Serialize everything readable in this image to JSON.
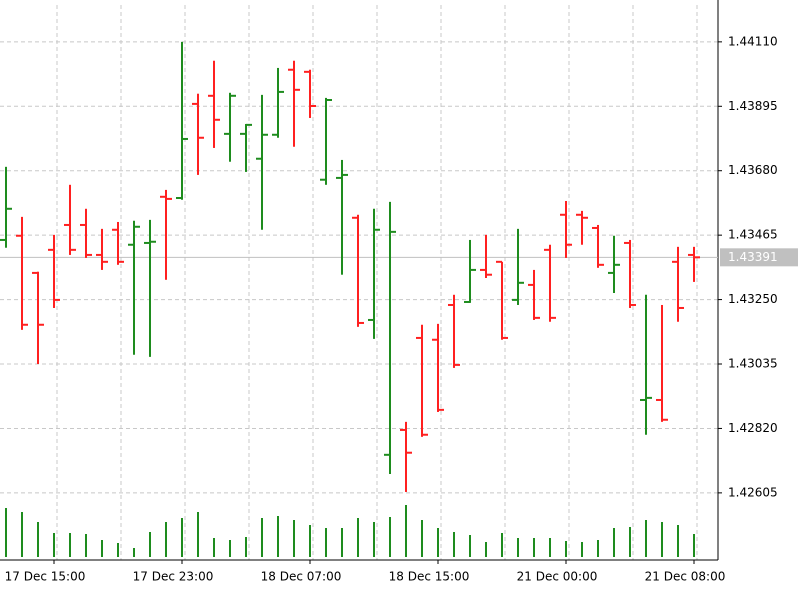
{
  "chart_data": {
    "type": "ohlc",
    "x": [
      null,
      null,
      null,
      "17 Dec 15:00",
      null,
      null,
      null,
      null,
      null,
      null,
      null,
      "17 Dec 23:00",
      null,
      null,
      null,
      null,
      null,
      null,
      null,
      "18 Dec 07:00",
      null,
      null,
      null,
      null,
      null,
      null,
      null,
      "18 Dec 15:00",
      null,
      null,
      null,
      null,
      null,
      null,
      null,
      "21 Dec 00:00",
      null,
      null,
      null,
      null,
      null,
      null,
      null,
      "21 Dec 08:00"
    ],
    "open": [
      1.43449,
      1.43463,
      1.43339,
      1.43416,
      1.43499,
      1.43499,
      1.43399,
      1.43483,
      1.43433,
      1.43439,
      1.43593,
      1.43589,
      1.43903,
      1.4393,
      1.43803,
      1.43803,
      1.4372,
      1.438,
      1.44017,
      1.4401,
      1.4365,
      1.43656,
      1.43523,
      1.43182,
      1.42732,
      1.42815,
      1.43122,
      1.43116,
      1.43232,
      1.43242,
      1.43349,
      1.43376,
      1.43249,
      1.43299,
      1.43416,
      1.43533,
      1.43533,
      1.43489,
      1.43339,
      1.43439,
      1.42915,
      1.42915,
      1.43376,
      1.43399
    ],
    "high": [
      1.43693,
      1.43526,
      1.43343,
      1.43466,
      1.43633,
      1.43553,
      1.43486,
      1.43509,
      1.43513,
      1.43516,
      1.43616,
      1.4411,
      1.43937,
      1.44047,
      1.4394,
      1.43836,
      1.43933,
      1.44023,
      1.44047,
      1.44017,
      1.43923,
      1.43716,
      1.43533,
      1.43553,
      1.43576,
      1.42842,
      1.43166,
      1.43169,
      1.43266,
      1.43449,
      1.43466,
      1.43376,
      1.43486,
      1.43349,
      1.43433,
      1.43579,
      1.43546,
      1.43499,
      1.43463,
      1.43449,
      1.43266,
      1.43232,
      1.43426,
      1.43426
    ],
    "low": [
      1.43423,
      1.43149,
      1.43035,
      1.43222,
      1.43399,
      1.43389,
      1.43349,
      1.43366,
      1.43066,
      1.43059,
      1.43316,
      1.43583,
      1.43666,
      1.43756,
      1.4371,
      1.43676,
      1.43483,
      1.4379,
      1.4376,
      1.43856,
      1.43633,
      1.43333,
      1.43159,
      1.43119,
      1.42668,
      1.42608,
      1.42792,
      1.42875,
      1.43022,
      1.43239,
      1.43322,
      1.43116,
      1.43232,
      1.43182,
      1.43176,
      1.43389,
      1.43433,
      1.43356,
      1.43272,
      1.43222,
      1.42799,
      1.42842,
      1.43176,
      1.43309
    ],
    "close": [
      1.43553,
      1.43166,
      1.43166,
      1.43249,
      1.43416,
      1.43399,
      1.43376,
      1.43376,
      1.43493,
      1.43443,
      1.43586,
      1.43786,
      1.4379,
      1.4385,
      1.4393,
      1.43833,
      1.438,
      1.43943,
      1.4395,
      1.43896,
      1.43916,
      1.43666,
      1.43172,
      1.43483,
      1.43476,
      1.42739,
      1.42799,
      1.42882,
      1.43032,
      1.43349,
      1.43333,
      1.43122,
      1.43306,
      1.43189,
      1.43189,
      1.43433,
      1.43523,
      1.43366,
      1.43366,
      1.43232,
      1.42922,
      1.42849,
      1.43222,
      1.43391
    ],
    "volume": [
      49,
      45,
      35,
      24,
      24,
      23,
      17,
      14,
      9,
      25,
      35,
      39,
      45,
      19,
      17,
      20,
      39,
      41,
      37,
      32,
      29,
      29,
      39,
      35,
      40,
      52,
      37,
      29,
      25,
      22,
      15,
      24,
      19,
      19,
      19,
      16,
      15,
      17,
      29,
      30,
      37,
      35,
      32,
      23
    ],
    "up_color": "#1e8c1e",
    "down_color": "#ff2020",
    "volume_color": "#1e8c1e",
    "current_price": 1.43391,
    "ylim": [
      1.42381,
      1.44233
    ],
    "yticks": [
      {
        "value": 1.4411,
        "label": "1.44110"
      },
      1.43895,
      {
        "value": 1.4368,
        "label": "1.43680"
      },
      1.43465,
      {
        "value": 1.4325,
        "label": "1.43250"
      },
      1.43035,
      {
        "value": 1.4282,
        "label": "1.42820"
      },
      1.42605
    ],
    "grid": true
  }
}
